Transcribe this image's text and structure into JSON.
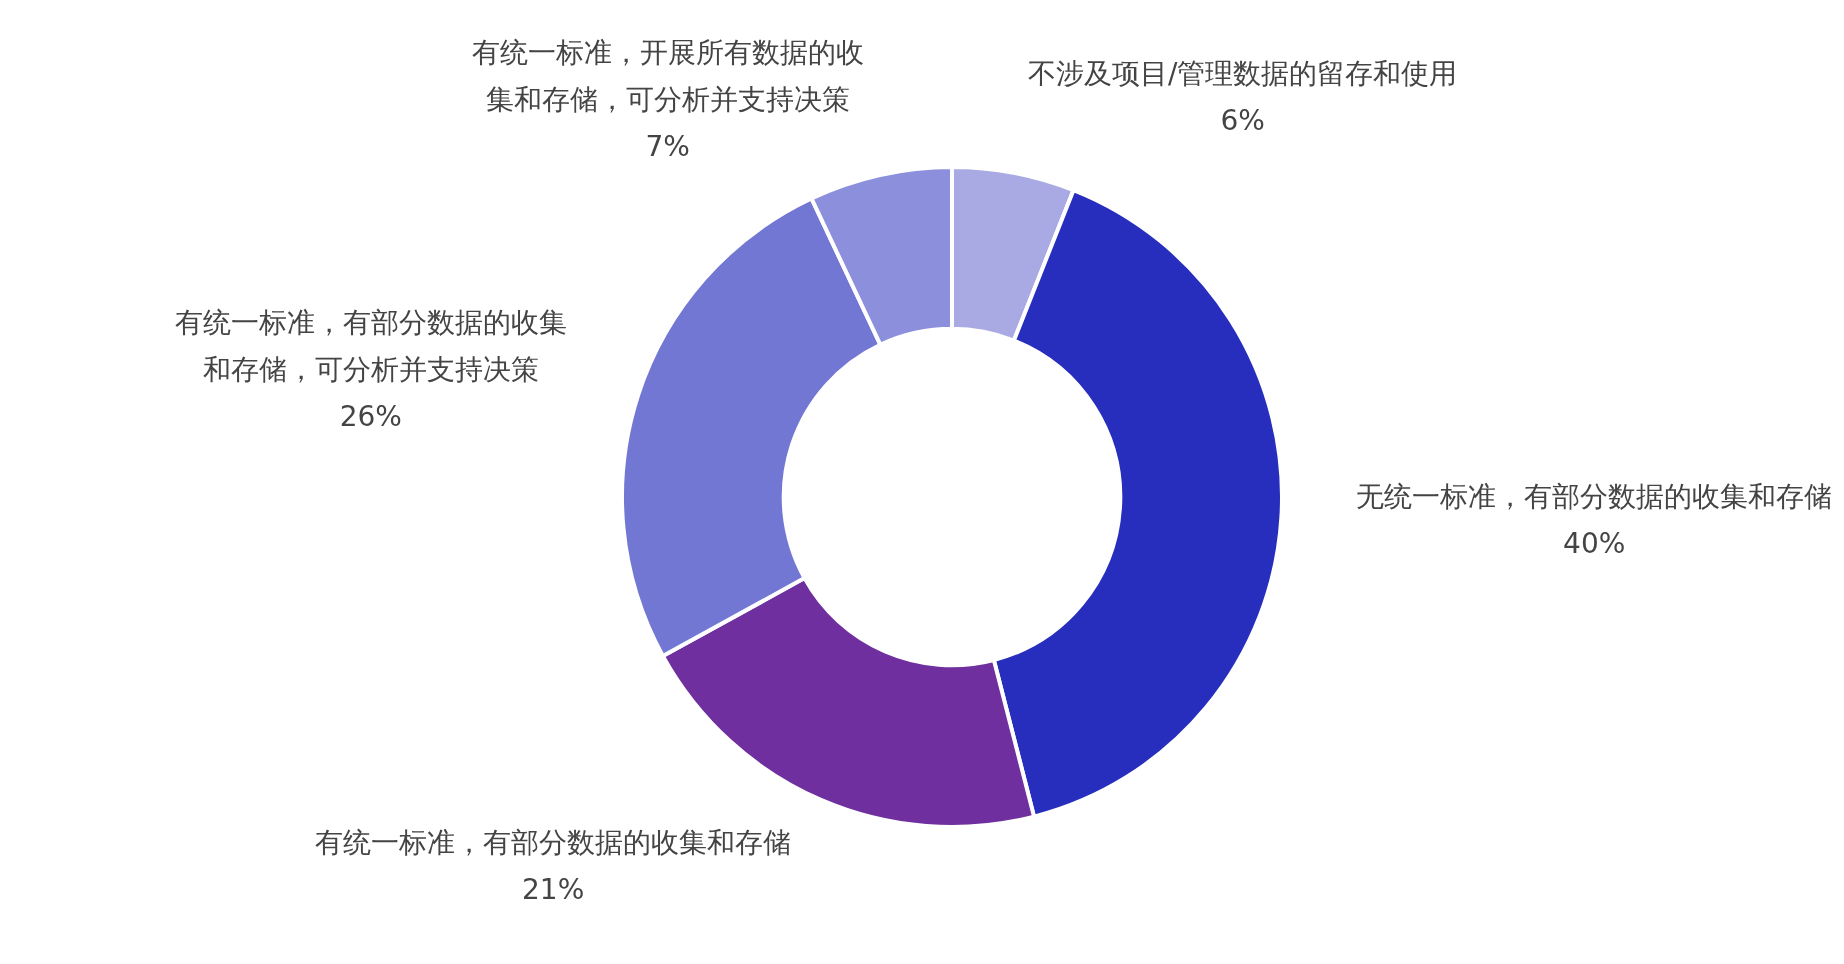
{
  "chart_data": {
    "type": "donut",
    "categories": [
      "不涉及项目/管理数据的留存和使用",
      "无统一标准，有部分数据的收集和存储",
      "有统一标准，有部分数据的收集和存储",
      "有统一标准，有部分数据的收集和存储，可分析并支持决策",
      "有统一标准，开展所有数据的收集和存储，可分析并支持决策"
    ],
    "values": [
      6,
      40,
      21,
      26,
      7
    ],
    "colors": [
      "#a9aae3",
      "#272dbd",
      "#6f2f9e",
      "#7277d4",
      "#8c8fdc"
    ],
    "value_labels": [
      "6%",
      "40%",
      "21%",
      "26%",
      "7%"
    ],
    "legend": false
  }
}
